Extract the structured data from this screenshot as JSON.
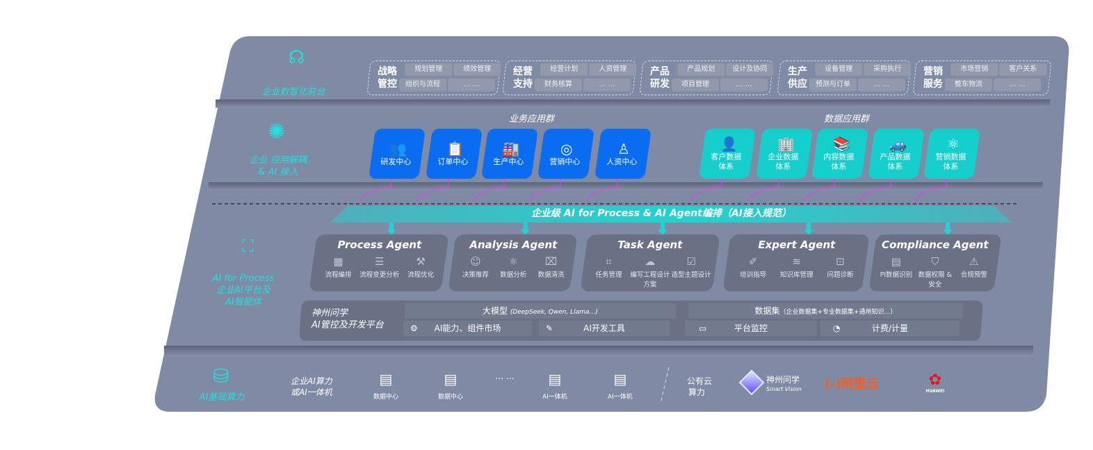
{
  "colors": {
    "panel": "#7f8aa5",
    "accent_cyan": "#22e0dc",
    "business_tile": "#0a6cf0",
    "data_tile": "#15cfcc",
    "arrow": "#e040f0",
    "agent_box": "#6a7185"
  },
  "layer1": {
    "label": "企业数智化前台",
    "icon": "brain-icon",
    "groups": [
      {
        "title": "战略管控",
        "items": [
          "规划管理",
          "绩效管理",
          "组织与流程",
          "… …"
        ]
      },
      {
        "title": "经营支持",
        "items": [
          "经营计划",
          "人资管理",
          "财务核算",
          "… …"
        ]
      },
      {
        "title": "产品研发",
        "items": [
          "产品规划",
          "设计及协同",
          "项目管理",
          "… …"
        ]
      },
      {
        "title": "生产供应",
        "items": [
          "设备管理",
          "采购执行",
          "预测与订单",
          "… …"
        ]
      },
      {
        "title": "营销服务",
        "items": [
          "市场营销",
          "客户关系",
          "整车物流",
          "… …"
        ]
      }
    ]
  },
  "layer2": {
    "label1": "企业 应用解耦",
    "label2": "& AI 接入",
    "icon": "molecule-icon",
    "business_title": "业务应用群",
    "business": [
      {
        "label": "研发中心",
        "icon": "users-icon"
      },
      {
        "label": "订单中心",
        "icon": "clipboard-icon"
      },
      {
        "label": "生产中心",
        "icon": "factory-icon"
      },
      {
        "label": "营销中心",
        "icon": "target-icon"
      },
      {
        "label": "人资中心",
        "icon": "person-icon"
      }
    ],
    "data_title": "数据应用群",
    "data": [
      {
        "label": "客户数据体系",
        "icon": "user-icon"
      },
      {
        "label": "企业数据体系",
        "icon": "building-icon"
      },
      {
        "label": "内容数据体系",
        "icon": "books-icon"
      },
      {
        "label": "产品数据体系",
        "icon": "car-icon"
      },
      {
        "label": "营销数据体系",
        "icon": "atom-icon"
      }
    ]
  },
  "banner": "企业级 AI for Process & AI Agent编排（AI接入规范）",
  "layer3": {
    "label1": "AI for Process",
    "label2": "企业AI平台及",
    "label3": "AI智能体",
    "icon": "face-scan-icon",
    "agents": [
      {
        "name": "Process Agent",
        "items": [
          {
            "label": "流程编排",
            "icon": "chart-icon"
          },
          {
            "label": "流程变更分析",
            "icon": "list-icon"
          },
          {
            "label": "流程优化",
            "icon": "optimize-icon"
          }
        ]
      },
      {
        "name": "Analysis Agent",
        "items": [
          {
            "label": "决策推荐",
            "icon": "head-icon"
          },
          {
            "label": "数据分析",
            "icon": "atom-icon"
          },
          {
            "label": "数据清洗",
            "icon": "clean-icon"
          }
        ]
      },
      {
        "name": "Task Agent",
        "items": [
          {
            "label": "任务管理",
            "icon": "task-icon"
          },
          {
            "label": "编写工程设计方案",
            "icon": "cloud-icon"
          },
          {
            "label": "造型主题设计",
            "icon": "checklist-icon"
          }
        ]
      },
      {
        "name": "Expert Agent",
        "items": [
          {
            "label": "培训指导",
            "icon": "training-icon"
          },
          {
            "label": "知识库管理",
            "icon": "layers-icon"
          },
          {
            "label": "问题诊断",
            "icon": "diagnose-icon"
          }
        ]
      },
      {
        "name": "Compliance Agent",
        "items": [
          {
            "label": "PI数据识别",
            "icon": "id-icon"
          },
          {
            "label": "数据权限 & 安全",
            "icon": "shield-icon"
          },
          {
            "label": "合规预警",
            "icon": "alert-icon"
          }
        ]
      }
    ],
    "platform": {
      "title1": "神州问学",
      "title2": "AI管控及开发平台",
      "llm": "大模型",
      "llm_note": "(DeepSeek, Qwen, Llama…)",
      "dataset": "数据集",
      "dataset_note": "（企业数据集+专业数据集+通用知识…）",
      "market": "AI能力、组件市场",
      "devtools": "AI开发工具",
      "monitor": "平台监控",
      "billing": "计费/计量"
    }
  },
  "layer4": {
    "label": "AI基础算力",
    "icon": "database-icon",
    "compute1": "企业AI算力",
    "compute2": "或AI一体机",
    "servers": [
      "数据中心",
      "数据中心",
      "AI一体机",
      "AI一体机"
    ],
    "ellipsis": "… …",
    "cloud1": "公有云",
    "cloud2": "算力",
    "vendors": {
      "smartvision_cn": "神州问学",
      "smartvision_en": "Smart Vision",
      "aliyun": "阿里云",
      "aliyun_mark": "(-)",
      "huawei": "HUAWEI"
    }
  }
}
